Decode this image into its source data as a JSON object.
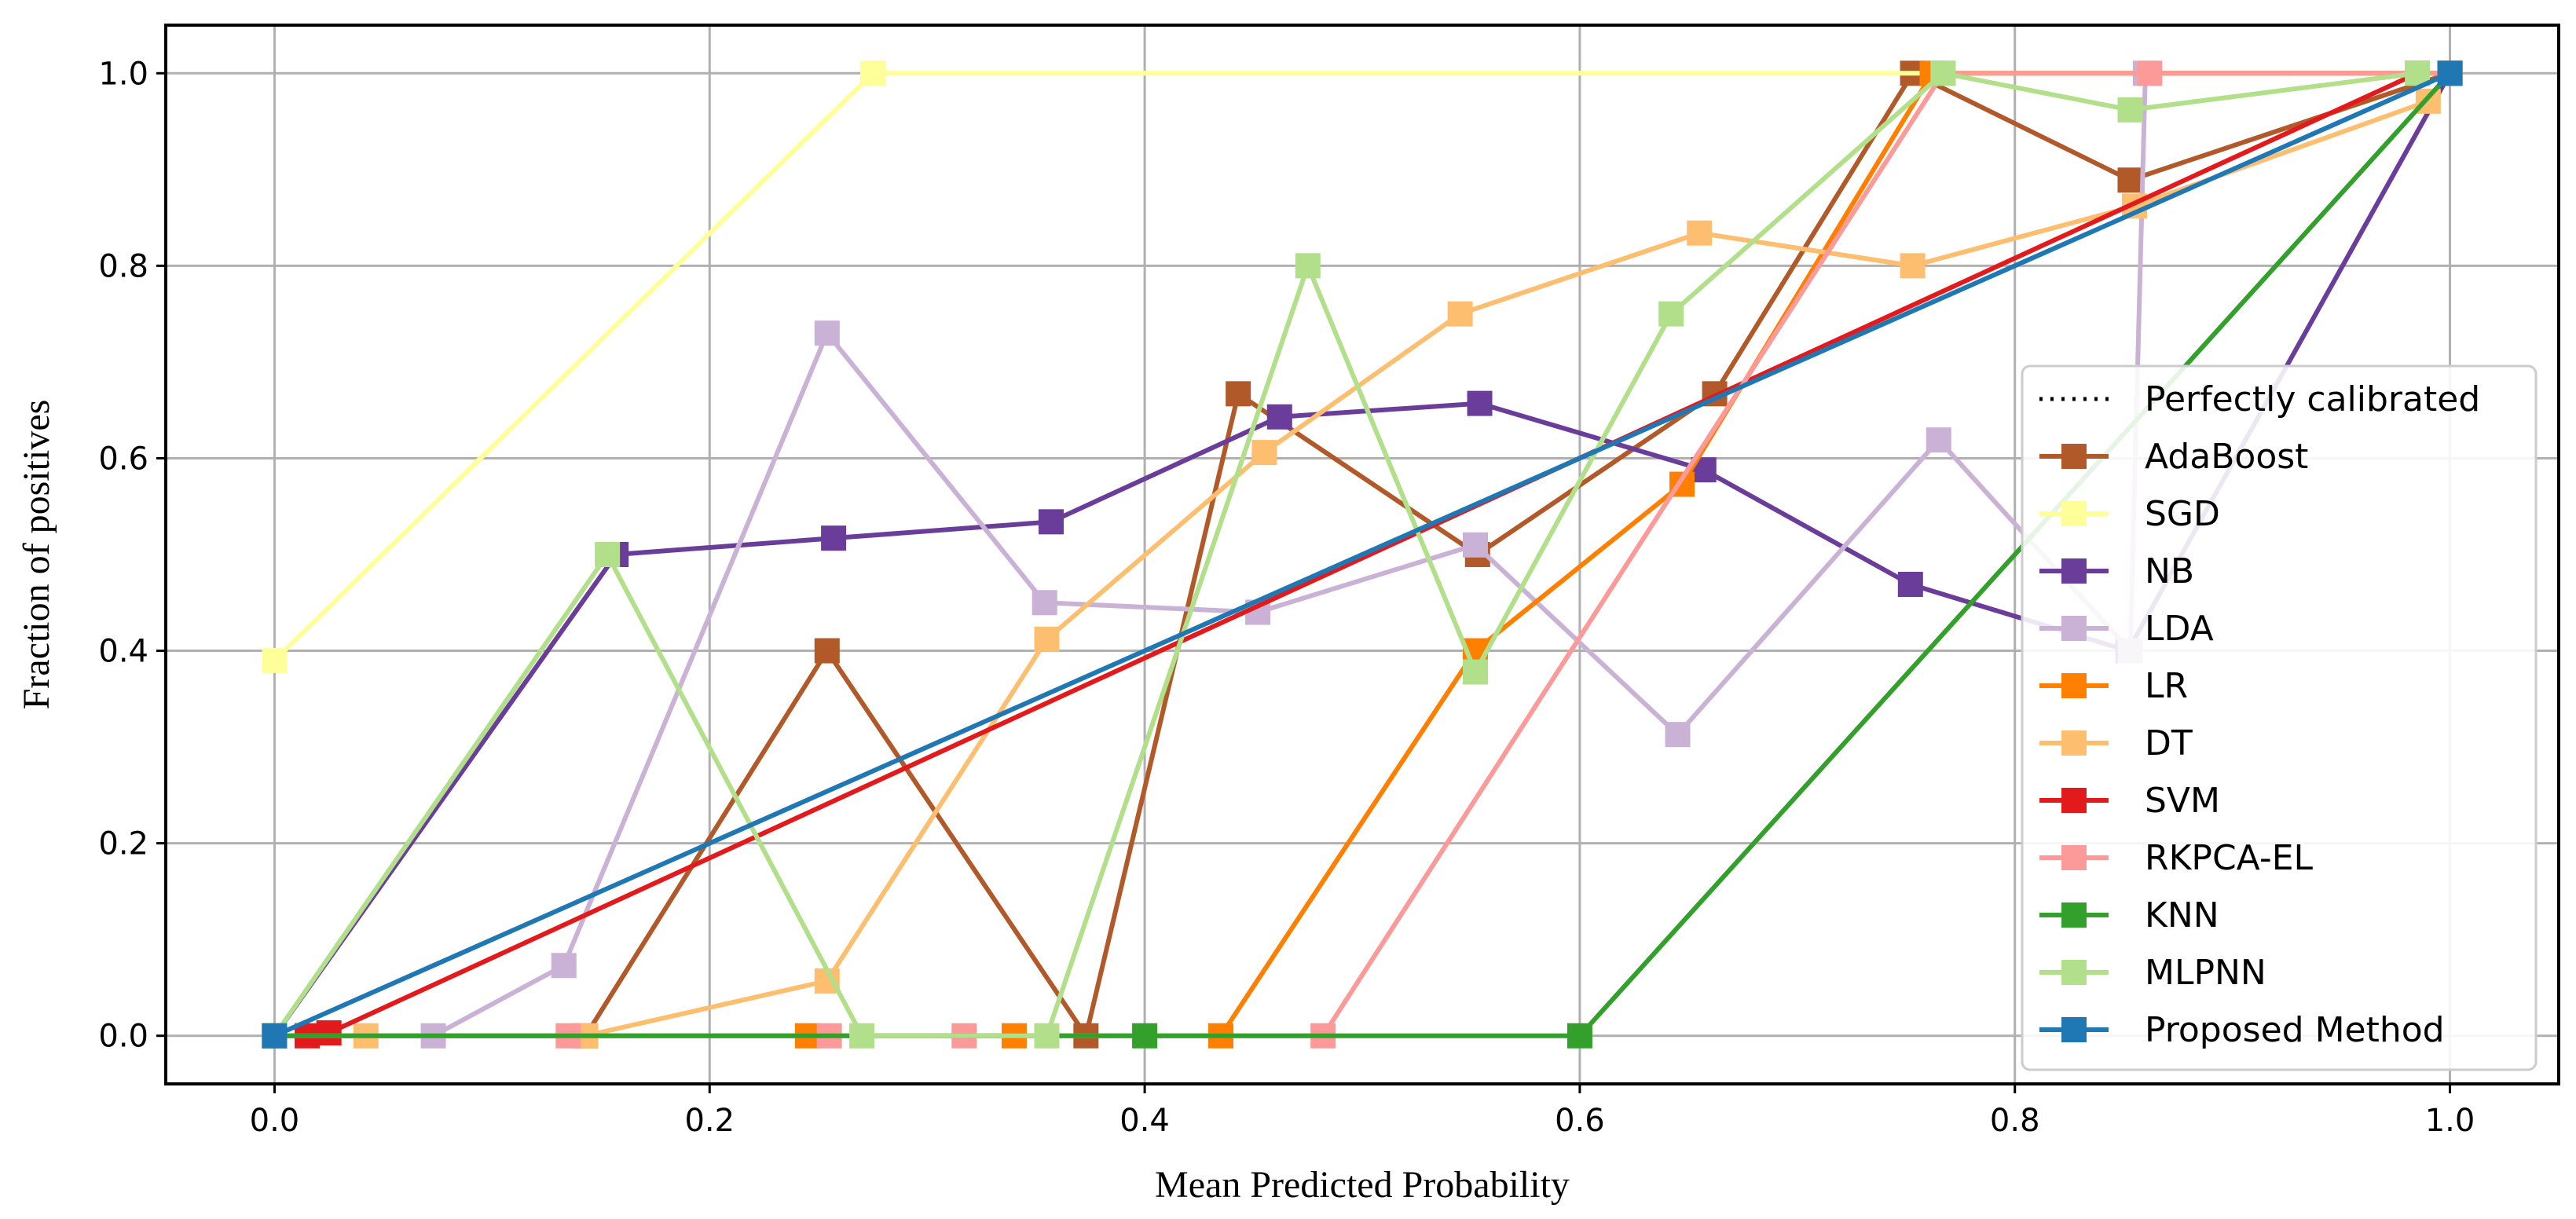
{
  "chart_data": {
    "type": "line",
    "title": "",
    "xlabel": "Mean Predicted Probability",
    "ylabel": "Fraction of positives",
    "xlim": [
      -0.05,
      1.05
    ],
    "ylim": [
      -0.05,
      1.05
    ],
    "xticks": [
      "0.0",
      "0.2",
      "0.4",
      "0.6",
      "0.8",
      "1.0"
    ],
    "yticks": [
      "0.0",
      "0.2",
      "0.4",
      "0.6",
      "0.8",
      "1.0"
    ],
    "grid": true,
    "legend_position": "center-right",
    "reference": {
      "name": "Perfectly calibrated",
      "x": [
        0,
        1
      ],
      "y": [
        0,
        1
      ],
      "color": "#000000",
      "style": "dotted"
    },
    "series": [
      {
        "name": "AdaBoost",
        "color": "#b15928",
        "x": [
          0.0,
          0.143,
          0.254,
          0.373,
          0.443,
          0.553,
          0.662,
          0.753,
          0.853,
          1.0
        ],
        "y": [
          0.0,
          0.0,
          0.4,
          0.0,
          0.667,
          0.5,
          0.667,
          1.0,
          0.889,
          1.0
        ]
      },
      {
        "name": "SGD",
        "color": "#ffff99",
        "x": [
          0.0,
          0.275,
          1.0
        ],
        "y": [
          0.39,
          1.0,
          1.0
        ]
      },
      {
        "name": "NB",
        "color": "#6a3d9a",
        "x": [
          0.0,
          0.157,
          0.257,
          0.357,
          0.462,
          0.554,
          0.657,
          0.752,
          0.852,
          1.0
        ],
        "y": [
          0.0,
          0.5,
          0.517,
          0.534,
          0.643,
          0.657,
          0.588,
          0.469,
          0.4,
          1.0
        ]
      },
      {
        "name": "LDA",
        "color": "#cab2d6",
        "x": [
          0.0,
          0.073,
          0.133,
          0.254,
          0.354,
          0.452,
          0.552,
          0.645,
          0.765,
          0.853,
          0.86,
          1.0
        ],
        "y": [
          0.0,
          0.0,
          0.073,
          0.73,
          0.45,
          0.44,
          0.51,
          0.313,
          0.619,
          0.4,
          1.0,
          1.0
        ]
      },
      {
        "name": "LR",
        "color": "#ff7f00",
        "x": [
          0.0,
          0.245,
          0.34,
          0.435,
          0.552,
          0.647,
          0.762,
          1.0
        ],
        "y": [
          0.0,
          0.0,
          0.0,
          0.0,
          0.4,
          0.573,
          1.0,
          1.0
        ]
      },
      {
        "name": "DT",
        "color": "#fdbf6f",
        "x": [
          0.0,
          0.042,
          0.143,
          0.254,
          0.355,
          0.455,
          0.545,
          0.655,
          0.753,
          0.855,
          0.99
        ],
        "y": [
          0.0,
          0.0,
          0.0,
          0.057,
          0.412,
          0.606,
          0.75,
          0.834,
          0.8,
          0.862,
          0.971
        ]
      },
      {
        "name": "SVM",
        "color": "#e31a1c",
        "x": [
          0.0,
          0.015,
          0.025,
          0.985
        ],
        "y": [
          0.0,
          0.0,
          0.003,
          1.0
        ]
      },
      {
        "name": "RKPCA-EL",
        "color": "#fb9a99",
        "x": [
          0.0,
          0.135,
          0.255,
          0.317,
          0.482,
          0.767,
          0.862,
          1.0
        ],
        "y": [
          0.0,
          0.0,
          0.0,
          0.0,
          0.0,
          1.0,
          1.0,
          1.0
        ]
      },
      {
        "name": "KNN",
        "color": "#33a02c",
        "x": [
          0.0,
          0.4,
          0.6,
          1.0
        ],
        "y": [
          0.0,
          0.0,
          0.0,
          1.0
        ]
      },
      {
        "name": "MLPNN",
        "color": "#b2df8a",
        "x": [
          0.0,
          0.153,
          0.27,
          0.355,
          0.475,
          0.552,
          0.642,
          0.767,
          0.853,
          0.985
        ],
        "y": [
          0.0,
          0.5,
          0.0,
          0.0,
          0.8,
          0.378,
          0.75,
          1.0,
          0.962,
          1.0
        ]
      },
      {
        "name": "Proposed Method",
        "color": "#1f78b4",
        "x": [
          0.0,
          1.0
        ],
        "y": [
          0.0,
          1.0
        ]
      }
    ]
  }
}
